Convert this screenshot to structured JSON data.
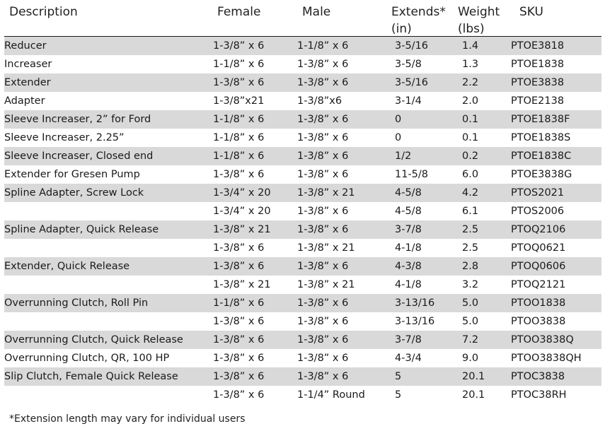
{
  "headers": {
    "description": "Description",
    "female": "Female",
    "male": "Male",
    "extends_line1": "Extends*",
    "extends_line2": "(in)",
    "weight_line1": "Weight",
    "weight_line2": "(lbs)",
    "sku": "SKU"
  },
  "rows": [
    {
      "description": "Reducer",
      "female": "1-3/8” x 6",
      "male": "1-1/8” x 6",
      "extends": "3-5/16",
      "weight": "1.4",
      "sku": "PTOE3818"
    },
    {
      "description": "Increaser",
      "female": "1-1/8” x 6",
      "male": "1-3/8” x 6",
      "extends": "3-5/8",
      "weight": "1.3",
      "sku": "PTOE1838"
    },
    {
      "description": "Extender",
      "female": "1-3/8” x 6",
      "male": "1-3/8” x 6",
      "extends": "3-5/16",
      "weight": "2.2",
      "sku": "PTOE3838"
    },
    {
      "description": "Adapter",
      "female": "1-3/8”x21",
      "male": "1-3/8”x6",
      "extends": "3-1/4",
      "weight": "2.0",
      "sku": "PTOE2138"
    },
    {
      "description": "Sleeve Increaser, 2” for Ford",
      "female": "1-1/8” x 6",
      "male": "1-3/8” x 6",
      "extends": "0",
      "weight": "0.1",
      "sku": "PTOE1838F"
    },
    {
      "description": "Sleeve Increaser, 2.25”",
      "female": "1-1/8” x 6",
      "male": "1-3/8” x 6",
      "extends": "0",
      "weight": "0.1",
      "sku": "PTOE1838S"
    },
    {
      "description": "Sleeve Increaser, Closed end",
      "female": "1-1/8” x 6",
      "male": "1-3/8” x 6",
      "extends": "1/2",
      "weight": "0.2",
      "sku": "PTOE1838C"
    },
    {
      "description": "Extender for Gresen Pump",
      "female": "1-3/8” x 6",
      "male": "1-3/8” x 6",
      "extends": "11-5/8",
      "weight": "6.0",
      "sku": "PTOE3838G"
    },
    {
      "description": "Spline Adapter, Screw Lock",
      "female": "1-3/4” x 20",
      "male": "1-3/8” x 21",
      "extends": "4-5/8",
      "weight": "4.2",
      "sku": "PTOS2021"
    },
    {
      "description": "",
      "female": "1-3/4” x 20",
      "male": "1-3/8” x 6",
      "extends": "4-5/8",
      "weight": "6.1",
      "sku": "PTOS2006"
    },
    {
      "description": "Spline Adapter, Quick Release",
      "female": "1-3/8” x 21",
      "male": "1-3/8” x 6",
      "extends": "3-7/8",
      "weight": "2.5",
      "sku": "PTOQ2106"
    },
    {
      "description": "",
      "female": "1-3/8” x 6",
      "male": "1-3/8” x 21",
      "extends": "4-1/8",
      "weight": "2.5",
      "sku": "PTOQ0621"
    },
    {
      "description": "Extender, Quick Release",
      "female": "1-3/8” x 6",
      "male": "1-3/8” x 6",
      "extends": "4-3/8",
      "weight": "2.8",
      "sku": "PTOQ0606"
    },
    {
      "description": "",
      "female": "1-3/8” x 21",
      "male": "1-3/8” x 21",
      "extends": "4-1/8",
      "weight": "3.2",
      "sku": "PTOQ2121"
    },
    {
      "description": "Overrunning Clutch, Roll Pin",
      "female": "1-1/8” x 6",
      "male": "1-3/8” x 6",
      "extends": "3-13/16",
      "weight": "5.0",
      "sku": "PTOO1838"
    },
    {
      "description": "",
      "female": "1-3/8” x 6",
      "male": "1-3/8” x 6",
      "extends": "3-13/16",
      "weight": "5.0",
      "sku": "PTOO3838"
    },
    {
      "description": "Overrunning Clutch, Quick Release",
      "female": "1-3/8” x 6",
      "male": "1-3/8” x 6",
      "extends": "3-7/8",
      "weight": "7.2",
      "sku": "PTOO3838Q"
    },
    {
      "description": "Overrunning Clutch, QR, 100 HP",
      "female": "1-3/8” x 6",
      "male": "1-3/8” x 6",
      "extends": "4-3/4",
      "weight": "9.0",
      "sku": "PTOO3838QH"
    },
    {
      "description": "Slip Clutch, Female Quick Release",
      "female": "1-3/8” x 6",
      "male": "1-3/8” x 6",
      "extends": "5",
      "weight": "20.1",
      "sku": "PTOC3838"
    },
    {
      "description": "",
      "female": "1-3/8” x 6",
      "male": "1-1/4” Round",
      "extends": "5",
      "weight": "20.1",
      "sku": "PTOC38RH"
    }
  ],
  "shaded_rows": [
    0,
    2,
    4,
    6,
    8,
    10,
    12,
    14,
    16,
    18
  ],
  "shade_color": "#d9d9d9",
  "footnote": "*Extension length may vary for individual users"
}
